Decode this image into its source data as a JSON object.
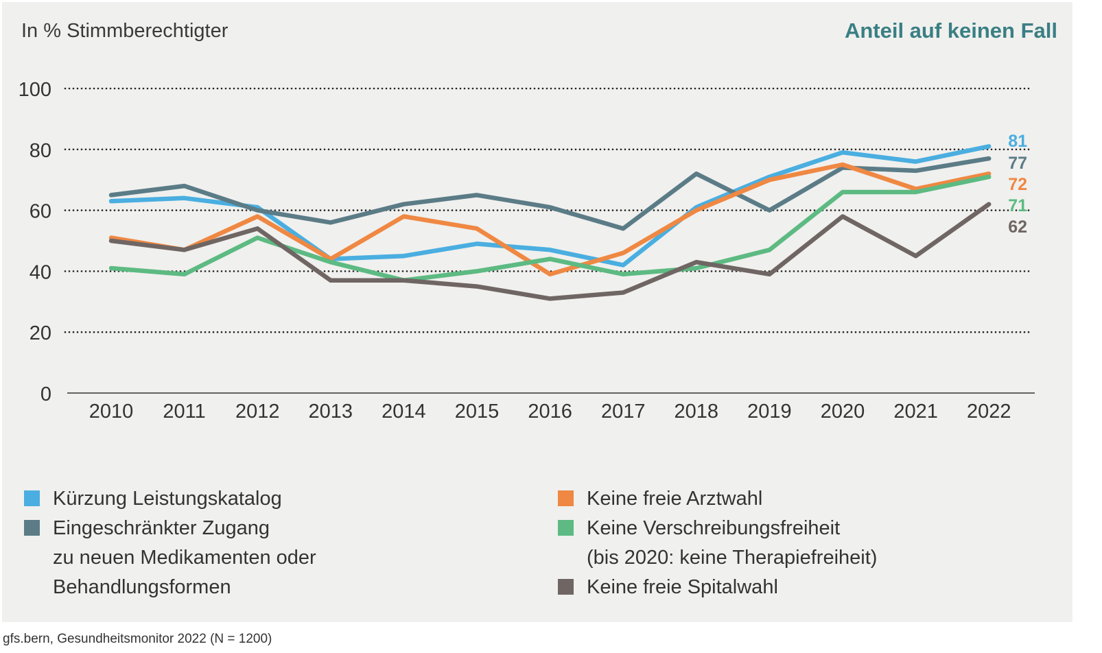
{
  "chart_data": {
    "type": "line",
    "title": "Anteil auf keinen Fall",
    "ylabel": "In % Stimmberechtigter",
    "xlabel": "",
    "categories": [
      "2010",
      "2011",
      "2012",
      "2013",
      "2014",
      "2015",
      "2016",
      "2017",
      "2018",
      "2019",
      "2020",
      "2021",
      "2022"
    ],
    "yticks": [
      0,
      20,
      40,
      60,
      80,
      100
    ],
    "ylim": [
      0,
      100
    ],
    "grid": "dotted horizontal",
    "legend": "bottom",
    "series": [
      {
        "name": "Kürzung Leistungskatalog",
        "color": "#4aaee0",
        "values": [
          63,
          64,
          61,
          44,
          45,
          49,
          47,
          42,
          61,
          71,
          79,
          76,
          81
        ],
        "end_label": "81"
      },
      {
        "name": "Eingeschränkter Zugang zu neuen Medikamenten oder Behandlungsformen",
        "color": "#5b7c86",
        "values": [
          65,
          68,
          60,
          56,
          62,
          65,
          61,
          54,
          72,
          60,
          74,
          73,
          77
        ],
        "end_label": "77"
      },
      {
        "name": "Keine freie Arztwahl",
        "color": "#ef8843",
        "values": [
          51,
          47,
          58,
          44,
          58,
          54,
          39,
          46,
          60,
          70,
          75,
          67,
          72
        ],
        "end_label": "72"
      },
      {
        "name": "Keine Verschreibungsfreiheit (bis 2020: keine Therapiefreiheit)",
        "color": "#5dba82",
        "values": [
          41,
          39,
          51,
          43,
          37,
          40,
          44,
          39,
          41,
          47,
          66,
          66,
          71
        ],
        "end_label": "71"
      },
      {
        "name": "Keine freie Spitalwahl",
        "color": "#6f6664",
        "values": [
          50,
          47,
          54,
          37,
          37,
          35,
          31,
          33,
          43,
          39,
          58,
          45,
          62
        ],
        "end_label": "62"
      }
    ]
  },
  "legend": {
    "left": [
      {
        "lines": [
          "Kürzung Leistungskatalog"
        ],
        "color": "#4aaee0"
      },
      {
        "lines": [
          "Eingeschränkter Zugang",
          "zu neuen Medikamenten oder",
          "Behandlungsformen"
        ],
        "color": "#5b7c86"
      }
    ],
    "right": [
      {
        "lines": [
          "Keine freie Arztwahl"
        ],
        "color": "#ef8843"
      },
      {
        "lines": [
          "Keine Verschreibungsfreiheit",
          "(bis 2020: keine Therapiefreiheit)"
        ],
        "color": "#5dba82"
      },
      {
        "lines": [
          "Keine freie Spitalwahl"
        ],
        "color": "#6f6664"
      }
    ]
  },
  "source": "gfs.bern, Gesundheitsmonitor 2022 (N = 1200)"
}
